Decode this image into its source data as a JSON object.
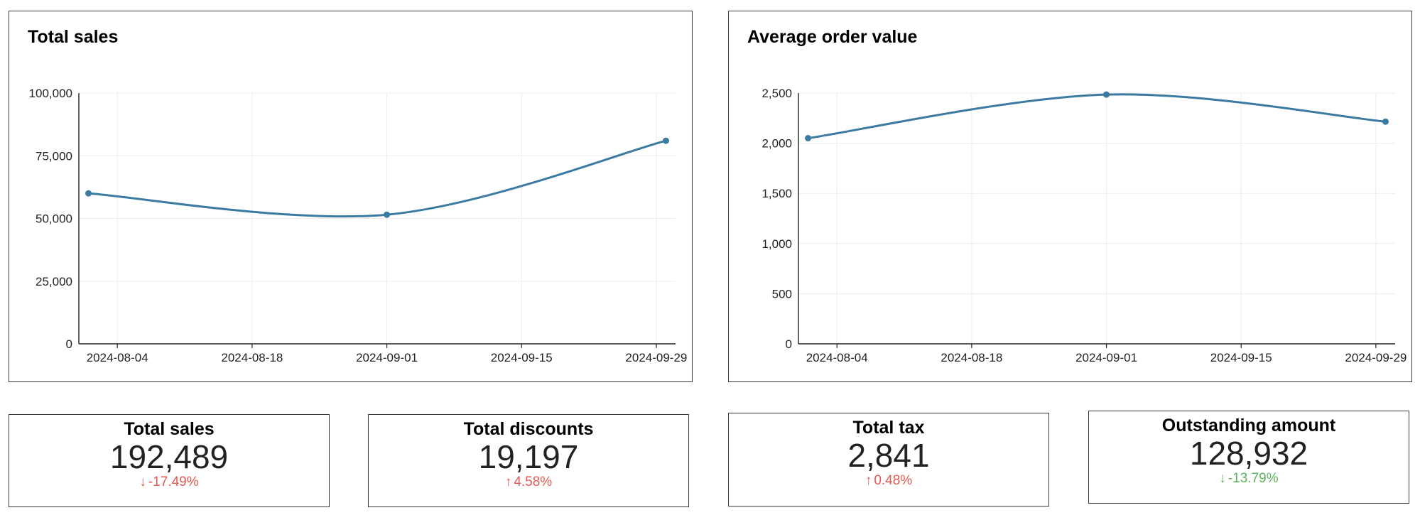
{
  "colors": {
    "line": "#3b7ba1",
    "grid": "#ececec",
    "axis": "#222222",
    "bad": "#e05a52",
    "good": "#5bb45b"
  },
  "charts": [
    {
      "title": "Total sales",
      "chart_data": {
        "type": "line",
        "title": "Total sales",
        "x_ticks": [
          "2024-08-04",
          "2024-08-18",
          "2024-09-01",
          "2024-09-15",
          "2024-09-29"
        ],
        "y_ticks": [
          "0",
          "25,000",
          "50,000",
          "75,000",
          "100,000"
        ],
        "ylim": [
          0,
          100000
        ],
        "xlim": [
          "2024-07-31",
          "2024-10-01"
        ],
        "grid": true,
        "series": [
          {
            "x": [
              "2024-08-01",
              "2024-09-01",
              "2024-09-30"
            ],
            "y": [
              60000,
              51500,
              81000
            ]
          }
        ]
      }
    },
    {
      "title": "Average order value",
      "chart_data": {
        "type": "line",
        "title": "Average order value",
        "x_ticks": [
          "2024-08-04",
          "2024-08-18",
          "2024-09-01",
          "2024-09-15",
          "2024-09-29"
        ],
        "y_ticks": [
          "0",
          "500",
          "1,000",
          "1,500",
          "2,000",
          "2,500"
        ],
        "ylim": [
          0,
          2500
        ],
        "xlim": [
          "2024-07-31",
          "2024-10-01"
        ],
        "grid": true,
        "series": [
          {
            "x": [
              "2024-08-01",
              "2024-09-01",
              "2024-09-30"
            ],
            "y": [
              2050,
              2485,
              2215
            ]
          }
        ]
      }
    }
  ],
  "kpis": [
    {
      "title": "Total sales",
      "value": "192,489",
      "arrow": "↓",
      "change": "-17.49%",
      "status": "bad"
    },
    {
      "title": "Total discounts",
      "value": "19,197",
      "arrow": "↑",
      "change": "4.58%",
      "status": "bad"
    },
    {
      "title": "Total tax",
      "value": "2,841",
      "arrow": "↑",
      "change": "0.48%",
      "status": "bad"
    },
    {
      "title": "Outstanding amount",
      "value": "128,932",
      "arrow": "↓",
      "change": "-13.79%",
      "status": "good"
    }
  ]
}
